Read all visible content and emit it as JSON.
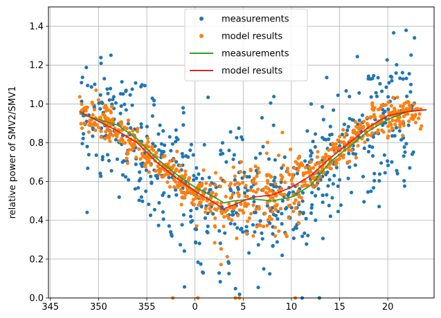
{
  "chart_data": {
    "type": "scatter",
    "title": "",
    "xlabel": "",
    "ylabel": "relative power of SMV2/SMV1",
    "x_tick_labels": [
      "345",
      "350",
      "355",
      "0",
      "5",
      "10",
      "15",
      "20"
    ],
    "y_tick_labels": [
      "0.0",
      "0.2",
      "0.4",
      "0.6",
      "0.8",
      "1.0",
      "1.2",
      "1.4"
    ],
    "xlim": [
      -15.2,
      24.8
    ],
    "ylim": [
      0,
      1.5
    ],
    "x_wraps_at": 360,
    "grid": true,
    "legend_position": "top-center",
    "legend": [
      {
        "label": "measurements",
        "kind": "marker",
        "color": "#1f77b4"
      },
      {
        "label": "model results",
        "kind": "marker",
        "color": "#ff7f0e"
      },
      {
        "label": "measurements",
        "kind": "line",
        "color": "#2ca02c"
      },
      {
        "label": "model results",
        "kind": "line",
        "color": "#d62728"
      }
    ],
    "series": [
      {
        "name": "measurements",
        "kind": "line",
        "color": "#2ca02c",
        "x": [
          -12,
          -10,
          -8,
          -6,
          -4,
          -2,
          0,
          2,
          3,
          4,
          6,
          8,
          10,
          12,
          14,
          16,
          18,
          20,
          22,
          24
        ],
        "y": [
          0.95,
          0.92,
          0.89,
          0.82,
          0.72,
          0.64,
          0.57,
          0.52,
          0.49,
          0.5,
          0.51,
          0.5,
          0.52,
          0.58,
          0.7,
          0.78,
          0.86,
          0.92,
          0.96,
          0.97
        ]
      },
      {
        "name": "model results",
        "kind": "line",
        "color": "#d62728",
        "x": [
          -12,
          -10,
          -8,
          -6,
          -4,
          -2,
          0,
          2,
          3,
          4,
          6,
          8,
          10,
          12,
          14,
          16,
          18,
          20,
          22,
          24
        ],
        "y": [
          0.96,
          0.91,
          0.86,
          0.8,
          0.7,
          0.62,
          0.55,
          0.49,
          0.46,
          0.48,
          0.52,
          0.53,
          0.57,
          0.63,
          0.72,
          0.8,
          0.88,
          0.94,
          0.96,
          0.97
        ]
      }
    ],
    "scatter_series": [
      {
        "name": "measurements",
        "color": "#1f77b4",
        "count": 650,
        "y_spread": 0.18,
        "trend": "follows green line"
      },
      {
        "name": "model results",
        "color": "#ff7f0e",
        "count": 750,
        "y_spread": 0.045,
        "trend": "follows red line"
      }
    ]
  }
}
